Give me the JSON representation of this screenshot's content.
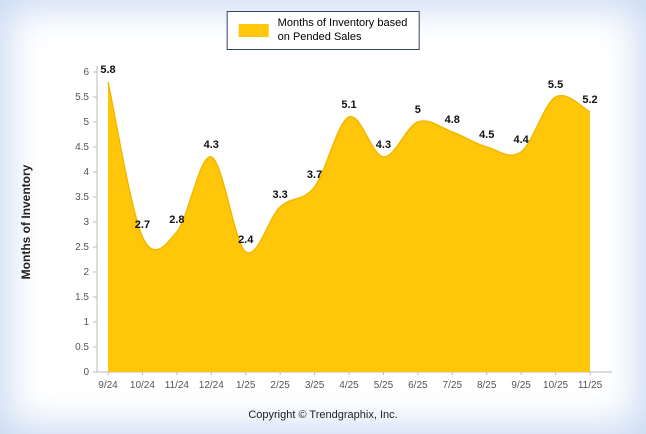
{
  "legend": {
    "line1": "Months of Inventory based",
    "line2": "on Pended Sales"
  },
  "chart_data": {
    "type": "area",
    "title": "",
    "categories": [
      "9/24",
      "10/24",
      "11/24",
      "12/24",
      "1/25",
      "2/25",
      "3/25",
      "4/25",
      "5/25",
      "6/25",
      "7/25",
      "8/25",
      "9/25",
      "10/25",
      "11/25"
    ],
    "values": [
      5.8,
      2.7,
      2.8,
      4.3,
      2.4,
      3.3,
      3.7,
      5.1,
      4.3,
      5,
      4.8,
      4.5,
      4.4,
      5.5,
      5.2
    ],
    "legend_label": "Months of Inventory based on Pended Sales",
    "legend_position": "top",
    "xlabel": "",
    "ylabel": "Months of Inventory",
    "ylim": [
      0,
      6
    ],
    "ytick_step": 0.5,
    "grid": false,
    "fill_color": "#FFC60A",
    "stroke_color": "#F2B800",
    "axis_color": "#bbbbbb",
    "tick_label_color": "#555555",
    "data_label_color": "#111111"
  },
  "footer": {
    "copyright": "Copyright © Trendgraphix, Inc."
  }
}
